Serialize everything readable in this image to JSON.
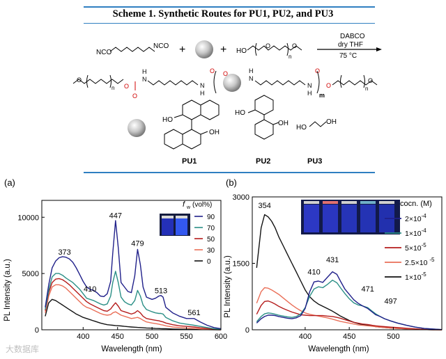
{
  "scheme": {
    "title": "Scheme 1. Synthetic Routes for PU1, PU2, and PU3",
    "reaction": {
      "catalyst": "DABCO",
      "solvent": "dry THF",
      "temperature": "75 °C",
      "diisocyanate_left": "NCO",
      "diisocyanate_right": "NCO",
      "plus": "+",
      "peg_ho": "HO",
      "peg_n": "n"
    },
    "product": {
      "n": "n",
      "m": "m",
      "nh": "N",
      "h": "H",
      "o": "O"
    },
    "diols": {
      "pu1": {
        "label": "PU1",
        "ho": "HO",
        "oh": "OH"
      },
      "pu2": {
        "label": "PU2",
        "ho": "HO",
        "oh": "OH"
      },
      "pu3": {
        "label": "PU3",
        "ho": "HO",
        "oh": "OH"
      }
    }
  },
  "watermark": "大数据库",
  "chart_data": [
    {
      "type": "line",
      "panel": "(a)",
      "xlabel": "Wavelength (nm)",
      "ylabel": "PL Intensity (a.u.)",
      "xlim": [
        340,
        600
      ],
      "ylim": [
        0,
        11500
      ],
      "xticks": [
        400,
        450,
        500,
        550,
        600
      ],
      "yticks": [
        0,
        5000,
        10000
      ],
      "legend_title_f": "f",
      "legend_title_sub": "w",
      "legend_title_unit": "(vol%)",
      "legend_position": "top-right",
      "annotations": [
        {
          "text": "373",
          "x": 373,
          "y": 6500
        },
        {
          "text": "410",
          "x": 410,
          "y": 3200
        },
        {
          "text": "447",
          "x": 447,
          "y": 9750
        },
        {
          "text": "479",
          "x": 479,
          "y": 7250
        },
        {
          "text": "513",
          "x": 513,
          "y": 3050
        },
        {
          "text": "561",
          "x": 561,
          "y": 1100
        }
      ],
      "x": [
        345,
        350,
        355,
        360,
        365,
        370,
        375,
        380,
        385,
        390,
        395,
        400,
        405,
        410,
        415,
        420,
        425,
        430,
        435,
        440,
        443,
        447,
        451,
        455,
        460,
        465,
        470,
        475,
        479,
        483,
        487,
        492,
        500,
        505,
        510,
        513,
        516,
        520,
        530,
        540,
        550,
        561,
        570,
        580,
        590,
        600
      ],
      "series": [
        {
          "name": "90",
          "color": "#20208a",
          "values": [
            2000,
            4000,
            5500,
            6100,
            6400,
            6500,
            6450,
            6300,
            6000,
            5500,
            4900,
            4300,
            3800,
            3600,
            3500,
            3300,
            3000,
            2950,
            3200,
            4300,
            6800,
            9700,
            7300,
            4200,
            3800,
            3400,
            3300,
            4800,
            7150,
            5800,
            3800,
            2900,
            2700,
            2800,
            3000,
            3050,
            2900,
            2000,
            1500,
            1200,
            1000,
            1000,
            700,
            400,
            200,
            100
          ]
        },
        {
          "name": "70",
          "color": "#2b8f86",
          "values": [
            1800,
            3500,
            4700,
            5000,
            5000,
            4850,
            4600,
            4400,
            4200,
            3900,
            3600,
            3200,
            2800,
            2700,
            2600,
            2450,
            2300,
            2200,
            2300,
            3000,
            4200,
            5200,
            4200,
            2900,
            2500,
            2300,
            2200,
            2600,
            3500,
            3000,
            2200,
            1800,
            1600,
            1500,
            1450,
            1450,
            1400,
            1100,
            800,
            600,
            500,
            400,
            300,
            200,
            100,
            50
          ]
        },
        {
          "name": "50",
          "color": "#b51c1c",
          "values": [
            1700,
            3300,
            4200,
            4500,
            4550,
            4450,
            4250,
            4000,
            3700,
            3400,
            3100,
            2800,
            2500,
            2300,
            2150,
            2000,
            1850,
            1700,
            1650,
            1850,
            2100,
            2400,
            2100,
            1700,
            1600,
            1500,
            1400,
            1500,
            1700,
            1500,
            1200,
            1000,
            900,
            850,
            800,
            750,
            700,
            600,
            450,
            350,
            300,
            250,
            180,
            120,
            60,
            20
          ]
        },
        {
          "name": "30",
          "color": "#ea6f58",
          "values": [
            1500,
            3000,
            3800,
            4000,
            4000,
            3900,
            3700,
            3400,
            3100,
            2800,
            2500,
            2200,
            2000,
            1900,
            1750,
            1600,
            1450,
            1350,
            1300,
            1350,
            1500,
            1600,
            1450,
            1300,
            1200,
            1100,
            1000,
            1050,
            1100,
            1000,
            850,
            700,
            600,
            550,
            500,
            450,
            420,
            350,
            250,
            200,
            150,
            120,
            80,
            50,
            20,
            0
          ]
        },
        {
          "name": "0",
          "color": "#111111",
          "values": [
            1200,
            2400,
            2700,
            2600,
            2400,
            2200,
            2000,
            1800,
            1600,
            1400,
            1250,
            1100,
            1000,
            900,
            800,
            700,
            600,
            520,
            450,
            420,
            400,
            380,
            360,
            340,
            300,
            270,
            250,
            230,
            210,
            200,
            180,
            160,
            140,
            120,
            110,
            100,
            95,
            90,
            70,
            50,
            40,
            30,
            20,
            10,
            5,
            0
          ]
        }
      ]
    },
    {
      "type": "line",
      "panel": "(b)",
      "xlabel": "Wavelength (nm)",
      "ylabel": "PL Intensity (a.u.)",
      "xlim": [
        340,
        555
      ],
      "ylim": [
        0,
        3000
      ],
      "xticks": [
        400,
        450,
        500
      ],
      "yticks": [
        0,
        1500,
        3000
      ],
      "legend_title": "cocn. (M)",
      "legend_position": "top-right",
      "annotations": [
        {
          "text": "354",
          "x": 354,
          "y": 2700
        },
        {
          "text": "410",
          "x": 410,
          "y": 1200
        },
        {
          "text": "431",
          "x": 431,
          "y": 1480
        },
        {
          "text": "471",
          "x": 471,
          "y": 820
        },
        {
          "text": "497",
          "x": 497,
          "y": 540
        }
      ],
      "legend_items": [
        {
          "mantissa": "2×10",
          "exponent": "-4"
        },
        {
          "mantissa": "1×10",
          "exponent": "-4"
        },
        {
          "mantissa": "5×10",
          "exponent": "-5"
        },
        {
          "mantissa": "2.5×10",
          "exponent": "-5"
        },
        {
          "mantissa": "1×10",
          "exponent": "-5"
        }
      ],
      "x": [
        345,
        350,
        354,
        358,
        362,
        366,
        370,
        375,
        380,
        385,
        390,
        395,
        400,
        405,
        410,
        415,
        420,
        425,
        431,
        436,
        440,
        445,
        450,
        455,
        460,
        465,
        471,
        476,
        480,
        485,
        490,
        497,
        505,
        515,
        525,
        535,
        545,
        555
      ],
      "series": [
        {
          "name": "2×10-4",
          "color": "#20208a",
          "values": [
            150,
            250,
            300,
            330,
            330,
            320,
            300,
            280,
            260,
            250,
            270,
            320,
            480,
            850,
            1080,
            1100,
            1070,
            1180,
            1310,
            1250,
            1100,
            920,
            800,
            680,
            600,
            540,
            480,
            400,
            340,
            300,
            250,
            200,
            150,
            100,
            60,
            30,
            15,
            5
          ]
        },
        {
          "name": "1×10-4",
          "color": "#2b8f86",
          "values": [
            180,
            300,
            360,
            380,
            370,
            350,
            330,
            310,
            290,
            280,
            300,
            360,
            500,
            750,
            920,
            970,
            950,
            1020,
            1120,
            1060,
            950,
            820,
            700,
            610,
            560,
            540,
            500,
            420,
            360,
            300,
            250,
            200,
            150,
            100,
            60,
            30,
            15,
            5
          ]
        },
        {
          "name": "5×10-5",
          "color": "#b51c1c",
          "values": [
            350,
            550,
            640,
            650,
            620,
            580,
            530,
            480,
            440,
            400,
            370,
            340,
            330,
            320,
            320,
            320,
            320,
            310,
            300,
            280,
            260,
            230,
            200,
            170,
            150,
            130,
            120,
            100,
            90,
            80,
            70,
            60,
            50,
            35,
            20,
            10,
            5,
            0
          ]
        },
        {
          "name": "2.5×10-5",
          "color": "#ea6f58",
          "values": [
            600,
            860,
            950,
            940,
            900,
            850,
            800,
            720,
            640,
            560,
            490,
            430,
            380,
            350,
            330,
            310,
            290,
            270,
            240,
            210,
            190,
            170,
            150,
            130,
            110,
            100,
            90,
            80,
            70,
            60,
            50,
            40,
            30,
            20,
            10,
            5,
            0,
            0
          ]
        },
        {
          "name": "1×10-5",
          "color": "#111111",
          "values": [
            1400,
            2300,
            2600,
            2550,
            2450,
            2300,
            2100,
            1900,
            1700,
            1500,
            1300,
            1100,
            900,
            750,
            650,
            580,
            530,
            480,
            420,
            360,
            310,
            260,
            210,
            170,
            140,
            120,
            100,
            85,
            70,
            60,
            50,
            40,
            30,
            20,
            10,
            5,
            0,
            0
          ]
        }
      ]
    }
  ]
}
